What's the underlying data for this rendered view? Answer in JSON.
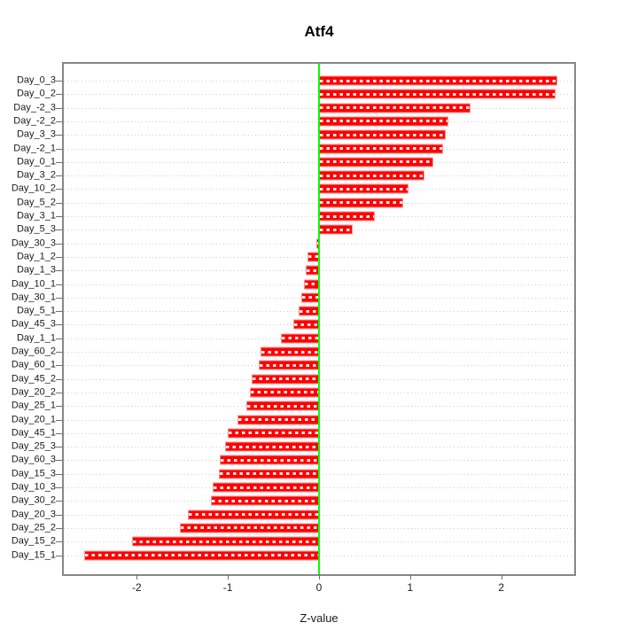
{
  "chart_data": {
    "type": "bar",
    "orientation": "horizontal",
    "title": "Atf4",
    "xlabel": "Z-value",
    "ylabel": "",
    "xlim": [
      -2.8,
      2.8
    ],
    "x_ticks": [
      -2,
      -1,
      0,
      1,
      2
    ],
    "grid": true,
    "legend": false,
    "bar_color": "#ff0000",
    "bar_border_color": "#ff9393",
    "zero_line_color": "#00ff00",
    "box_color": "#878787",
    "grid_color": "#cdcdcd",
    "categories": [
      "Day_0_3",
      "Day_0_2",
      "Day_-2_3",
      "Day_-2_2",
      "Day_3_3",
      "Day_-2_1",
      "Day_0_1",
      "Day_3_2",
      "Day_10_2",
      "Day_5_2",
      "Day_3_1",
      "Day_5_3",
      "Day_30_3",
      "Day_1_2",
      "Day_1_3",
      "Day_10_1",
      "Day_30_1",
      "Day_5_1",
      "Day_45_3",
      "Day_1_1",
      "Day_60_2",
      "Day_60_1",
      "Day_45_2",
      "Day_20_2",
      "Day_25_1",
      "Day_20_1",
      "Day_45_1",
      "Day_25_3",
      "Day_60_3",
      "Day_15_3",
      "Day_10_3",
      "Day_30_2",
      "Day_20_3",
      "Day_25_2",
      "Day_15_2",
      "Day_15_1"
    ],
    "values": [
      2.62,
      2.6,
      1.66,
      1.42,
      1.39,
      1.36,
      1.25,
      1.16,
      0.98,
      0.92,
      0.61,
      0.37,
      -0.03,
      -0.13,
      -0.15,
      -0.17,
      -0.19,
      -0.22,
      -0.28,
      -0.42,
      -0.64,
      -0.66,
      -0.74,
      -0.76,
      -0.8,
      -0.89,
      -1.0,
      -1.03,
      -1.09,
      -1.1,
      -1.17,
      -1.19,
      -1.44,
      -1.53,
      -2.05,
      -2.58
    ]
  }
}
